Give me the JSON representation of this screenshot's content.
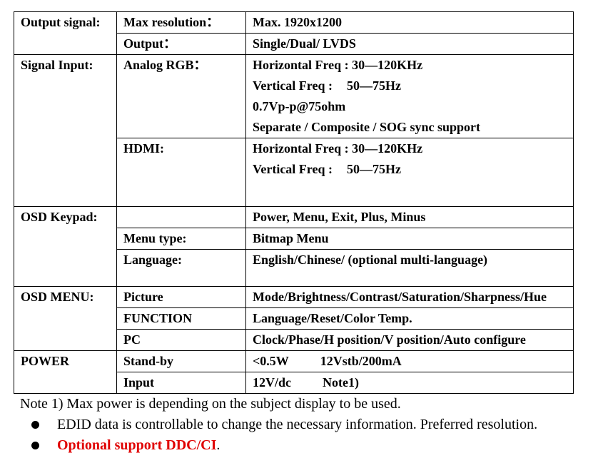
{
  "table": {
    "output": {
      "category": "Output signal:",
      "rows": [
        {
          "label": "Max resolution：",
          "value": "Max. 1920x1200"
        },
        {
          "label": "Output：",
          "value": "Single/Dual/ LVDS"
        }
      ]
    },
    "signal": {
      "category": "Signal Input:",
      "analog_label": "Analog RGB：",
      "analog_lines": [
        "Horizontal Freq : 30—120KHz",
        "Vertical Freq :",
        "0.7Vp-p@75ohm",
        "Separate / Composite / SOG sync support"
      ],
      "analog_vfreq_value": "50—75Hz",
      "hdmi_label": "HDMI:",
      "hdmi_lines": [
        "Horizontal Freq : 30—120KHz",
        "Vertical Freq :"
      ],
      "hdmi_vfreq_value": "50—75Hz"
    },
    "osd_keypad": {
      "category": "OSD Keypad:",
      "keys": "Power, Menu, Exit, Plus, Minus",
      "menu_type_label": "Menu type:",
      "menu_type_value": "Bitmap Menu",
      "language_label": "Language:",
      "language_value": "English/Chinese/ (optional multi-language)"
    },
    "osd_menu": {
      "category": "OSD MENU:",
      "rows": [
        {
          "label": "Picture",
          "value": "Mode/Brightness/Contrast/Saturation/Sharpness/Hue"
        },
        {
          "label": "FUNCTION",
          "value": "Language/Reset/Color Temp."
        },
        {
          "label": "PC",
          "value": "Clock/Phase/H position/V position/Auto configure"
        }
      ]
    },
    "power": {
      "category": "POWER",
      "standby_label": "Stand-by",
      "standby_value_a": "<0.5W",
      "standby_value_b": "12Vstb/200mA",
      "input_label": "Input",
      "input_value_a": "12V/dc",
      "input_value_b": "Note1)"
    }
  },
  "notes": {
    "note1": "Note 1) Max power is depending on the subject display to be used.",
    "bullet1": "EDID data is controllable to change the necessary information. Preferred resolution.",
    "bullet2_red": "Optional support DDC/CI",
    "bullet2_tail": "."
  }
}
